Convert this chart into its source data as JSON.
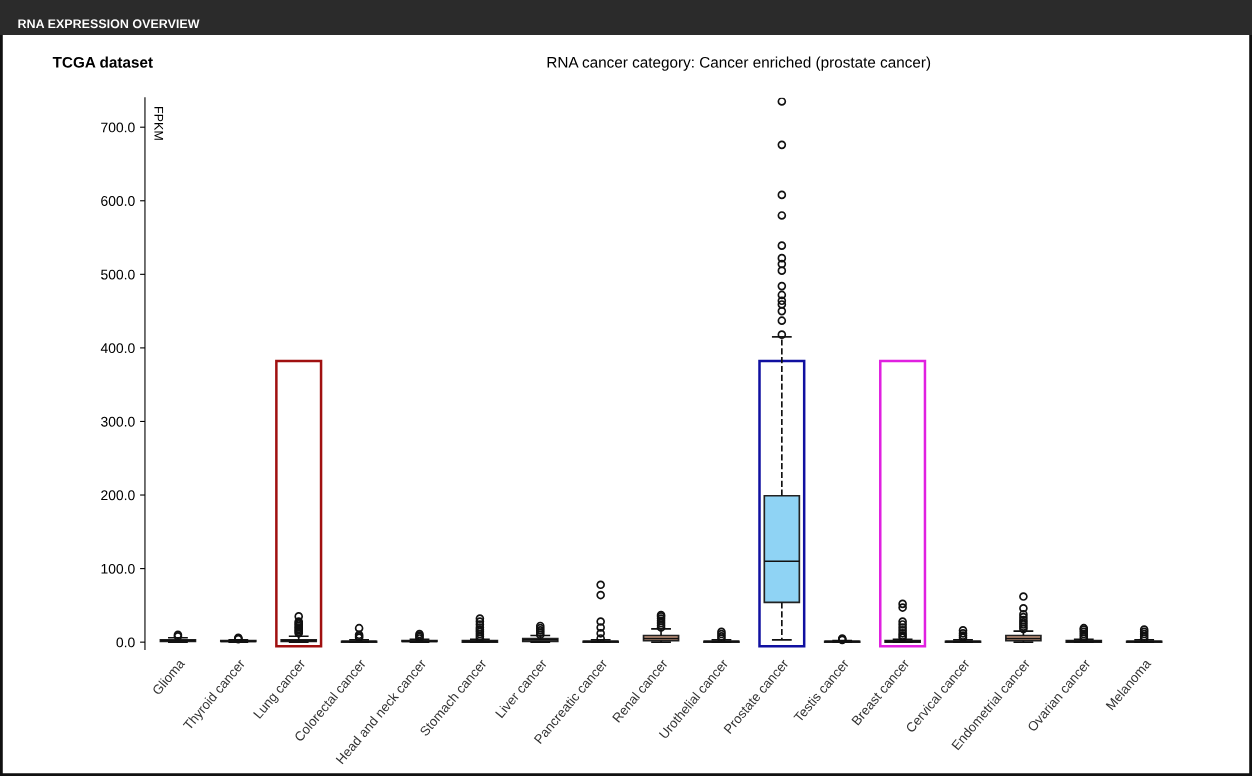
{
  "chart_data": {
    "type": "box",
    "title": "RNA EXPRESSION OVERVIEW",
    "subtitle": "RNA cancer category: Cancer enriched (prostate cancer)",
    "annotations": [
      "TCGA dataset"
    ],
    "ylabel": "FPKM",
    "categories": [
      "Glioma",
      "Thyroid cancer",
      "Lung cancer",
      "Colorectal cancer",
      "Head and neck cancer",
      "Stomach cancer",
      "Liver cancer",
      "Pancreatic cancer",
      "Renal cancer",
      "Urothelial cancer",
      "Prostate cancer",
      "Testis cancer",
      "Breast cancer",
      "Cervical cancer",
      "Endometrial cancer",
      "Ovarian cancer",
      "Melanoma"
    ],
    "colors": [
      "#d9d9d9",
      "#d9d9d9",
      "#d9d9d9",
      "#d9d9d9",
      "#d9d9d9",
      "#d9d9d9",
      "#d9d9d9",
      "#d9d9d9",
      "#c89a80",
      "#d9d9d9",
      "#8fd3f4",
      "#d9d9d9",
      "#d9d9d9",
      "#d9d9d9",
      "#c89a80",
      "#d9d9d9",
      "#d9d9d9"
    ],
    "boxes": [
      {
        "low": 0,
        "q1": 1,
        "median": 2,
        "q3": 3,
        "high": 6,
        "outliers": [
          8,
          10
        ]
      },
      {
        "low": 0,
        "q1": 1,
        "median": 1,
        "q3": 2,
        "high": 3,
        "outliers": [
          4,
          5,
          6
        ]
      },
      {
        "low": 0,
        "q1": 1,
        "median": 2,
        "q3": 3,
        "high": 8,
        "outliers": [
          12,
          14,
          16,
          18,
          20,
          22,
          24,
          26,
          28,
          35
        ]
      },
      {
        "low": 0,
        "q1": 0,
        "median": 1,
        "q3": 1,
        "high": 3,
        "outliers": [
          6,
          8,
          10,
          19
        ]
      },
      {
        "low": 0,
        "q1": 1,
        "median": 1,
        "q3": 2,
        "high": 4,
        "outliers": [
          5,
          7,
          9,
          11
        ]
      },
      {
        "low": 0,
        "q1": 0,
        "median": 1,
        "q3": 2,
        "high": 4,
        "outliers": [
          5,
          8,
          11,
          14,
          17,
          20,
          24,
          28,
          32
        ]
      },
      {
        "low": 0,
        "q1": 1,
        "median": 3,
        "q3": 5,
        "high": 9,
        "outliers": [
          10,
          13,
          16,
          19,
          22
        ]
      },
      {
        "low": 0,
        "q1": 0,
        "median": 1,
        "q3": 1,
        "high": 3,
        "outliers": [
          5,
          12,
          20,
          28,
          64,
          78
        ]
      },
      {
        "low": 0,
        "q1": 2,
        "median": 5,
        "q3": 9,
        "high": 18,
        "outliers": [
          20,
          23,
          26,
          29,
          32,
          35,
          37
        ]
      },
      {
        "low": 0,
        "q1": 0,
        "median": 1,
        "q3": 1,
        "high": 3,
        "outliers": [
          5,
          8,
          11,
          14
        ]
      },
      {
        "low": 3,
        "q1": 54,
        "median": 110,
        "q3": 199,
        "high": 415,
        "outliers": [
          418,
          437,
          450,
          459,
          464,
          472,
          484,
          505,
          514,
          522,
          539,
          580,
          608,
          676,
          735
        ]
      },
      {
        "low": 0,
        "q1": 0,
        "median": 1,
        "q3": 1,
        "high": 2,
        "outliers": [
          3,
          4,
          5
        ]
      },
      {
        "low": 0,
        "q1": 0,
        "median": 1,
        "q3": 2,
        "high": 4,
        "outliers": [
          6,
          9,
          12,
          16,
          20,
          24,
          28,
          47,
          52
        ]
      },
      {
        "low": 0,
        "q1": 0,
        "median": 1,
        "q3": 1,
        "high": 3,
        "outliers": [
          6,
          9,
          12,
          16
        ]
      },
      {
        "low": 0,
        "q1": 2,
        "median": 5,
        "q3": 9,
        "high": 15,
        "outliers": [
          18,
          21,
          24,
          27,
          30,
          34,
          38,
          46,
          62
        ]
      },
      {
        "low": 0,
        "q1": 0,
        "median": 1,
        "q3": 2,
        "high": 4,
        "outliers": [
          5,
          8,
          11,
          14,
          17,
          19
        ]
      },
      {
        "low": 0,
        "q1": 0,
        "median": 1,
        "q3": 1,
        "high": 3,
        "outliers": [
          5,
          8,
          11,
          14,
          17
        ]
      }
    ],
    "ylim": [
      -10,
      740
    ],
    "yticks": [
      {
        "value": 0,
        "label": "0.0"
      },
      {
        "value": 100,
        "label": "100.0"
      },
      {
        "value": 200,
        "label": "200.0"
      },
      {
        "value": 300,
        "label": "300.0"
      },
      {
        "value": 400,
        "label": "400.0"
      },
      {
        "value": 500,
        "label": "500.0"
      },
      {
        "value": 600,
        "label": "600.0"
      },
      {
        "value": 700,
        "label": "700.0"
      }
    ],
    "grid": false,
    "legend": false,
    "line_style": "dashed"
  }
}
